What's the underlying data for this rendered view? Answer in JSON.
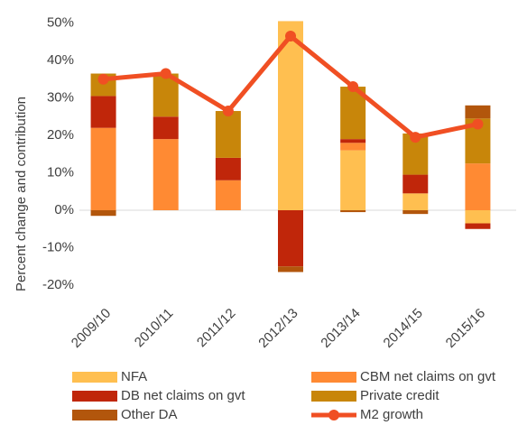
{
  "chart_data": {
    "type": "stacked-bar-line",
    "y_axis_label": "Percent change and contribution",
    "categories": [
      "2009/10",
      "2010/11",
      "2011/12",
      "2012/13",
      "2013/14",
      "2014/15",
      "2015/16"
    ],
    "series": [
      {
        "name": "NFA",
        "color": "#ffbf50",
        "values": [
          0,
          0,
          0,
          50.5,
          16,
          4.5,
          -3.5
        ]
      },
      {
        "name": "CBM net claims on gvt",
        "color": "#ff8a33",
        "values": [
          22,
          19,
          8,
          0,
          2,
          0,
          12.5
        ]
      },
      {
        "name": "DB net claims on gvt",
        "color": "#c0260a",
        "values": [
          8.5,
          6,
          6,
          -15,
          1,
          5,
          -1.5
        ]
      },
      {
        "name": "Private credit",
        "color": "#c8860a",
        "values": [
          6,
          11.5,
          12.5,
          0,
          14,
          11,
          12
        ]
      },
      {
        "name": "Other DA",
        "color": "#b2560c",
        "values": [
          -1.5,
          0,
          0,
          -1.5,
          -0.5,
          -1,
          3.5
        ]
      }
    ],
    "line": {
      "name": "M2 growth",
      "color": "#f04f23",
      "values": [
        35,
        36.5,
        26.5,
        46.5,
        33,
        19.5,
        23
      ]
    },
    "ylim": [
      -22,
      52
    ],
    "yticks": [
      {
        "value": 50,
        "label": "50%"
      },
      {
        "value": 40,
        "label": "40%"
      },
      {
        "value": 30,
        "label": "30%"
      },
      {
        "value": 20,
        "label": "20%"
      },
      {
        "value": 10,
        "label": "10%"
      },
      {
        "value": 0,
        "label": "0%"
      },
      {
        "value": -10,
        "label": "-10%"
      },
      {
        "value": -20,
        "label": "-20%"
      }
    ]
  }
}
